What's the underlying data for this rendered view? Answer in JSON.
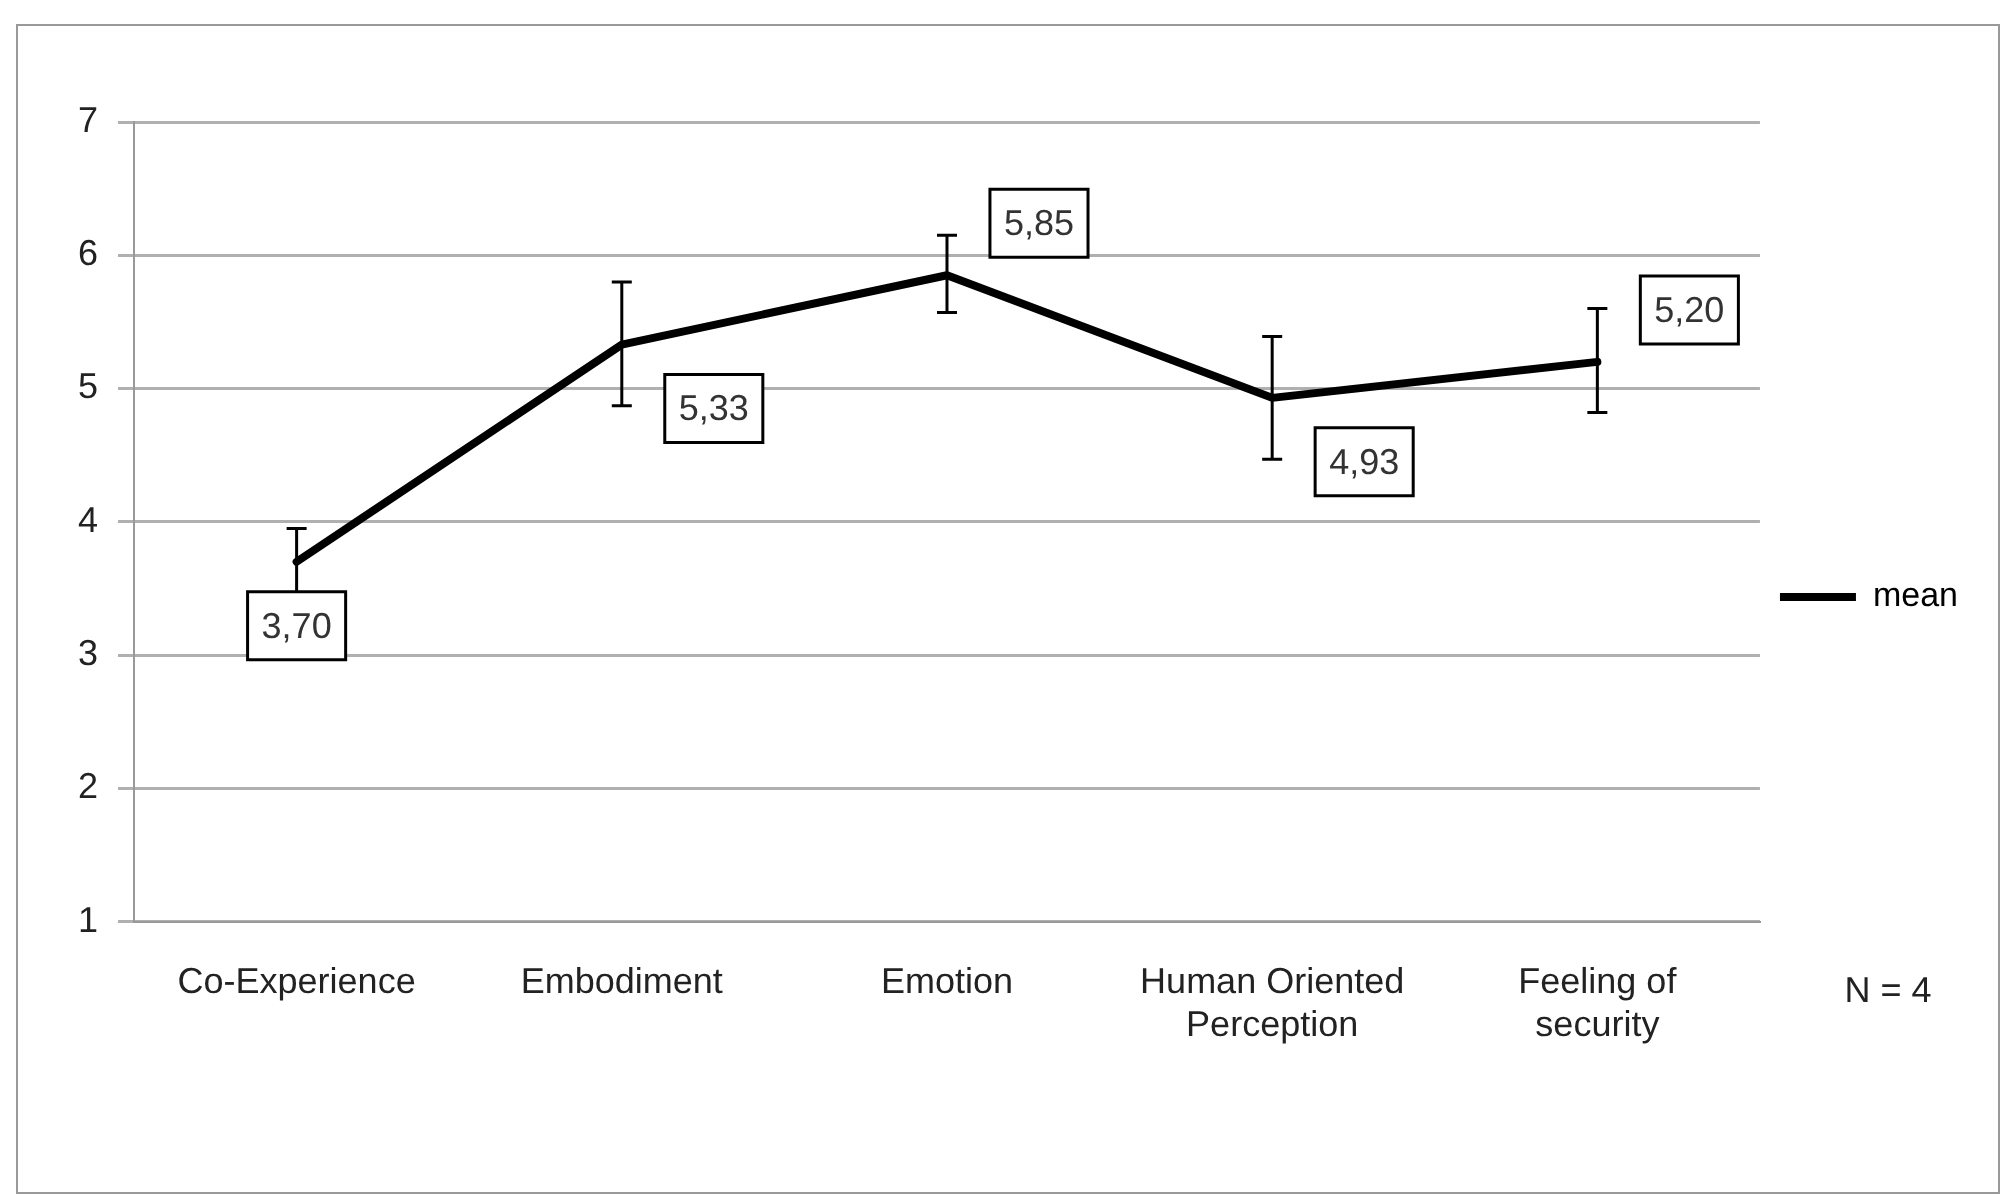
{
  "chart_data": {
    "type": "line",
    "categories": [
      "Co-Experience",
      "Embodiment",
      "Emotion",
      "Human Oriented Perception",
      "Feeling of security"
    ],
    "series": [
      {
        "name": "mean",
        "color": "#000000",
        "values": [
          3.7,
          5.33,
          5.85,
          4.93,
          5.2
        ],
        "errors": [
          [
            3.45,
            3.95
          ],
          [
            4.87,
            5.8
          ],
          [
            5.57,
            6.15
          ],
          [
            4.47,
            5.39
          ],
          [
            4.82,
            5.6
          ]
        ],
        "value_labels": [
          "3,70",
          "5,33",
          "5,85",
          "4,93",
          "5,20"
        ]
      }
    ],
    "ylim": [
      1,
      7
    ],
    "yticks": [
      1,
      2,
      3,
      4,
      5,
      6,
      7
    ],
    "grid": "y",
    "legend": "right",
    "marker": "none",
    "line_style": "solid",
    "annotations": [
      "N = 4"
    ]
  }
}
